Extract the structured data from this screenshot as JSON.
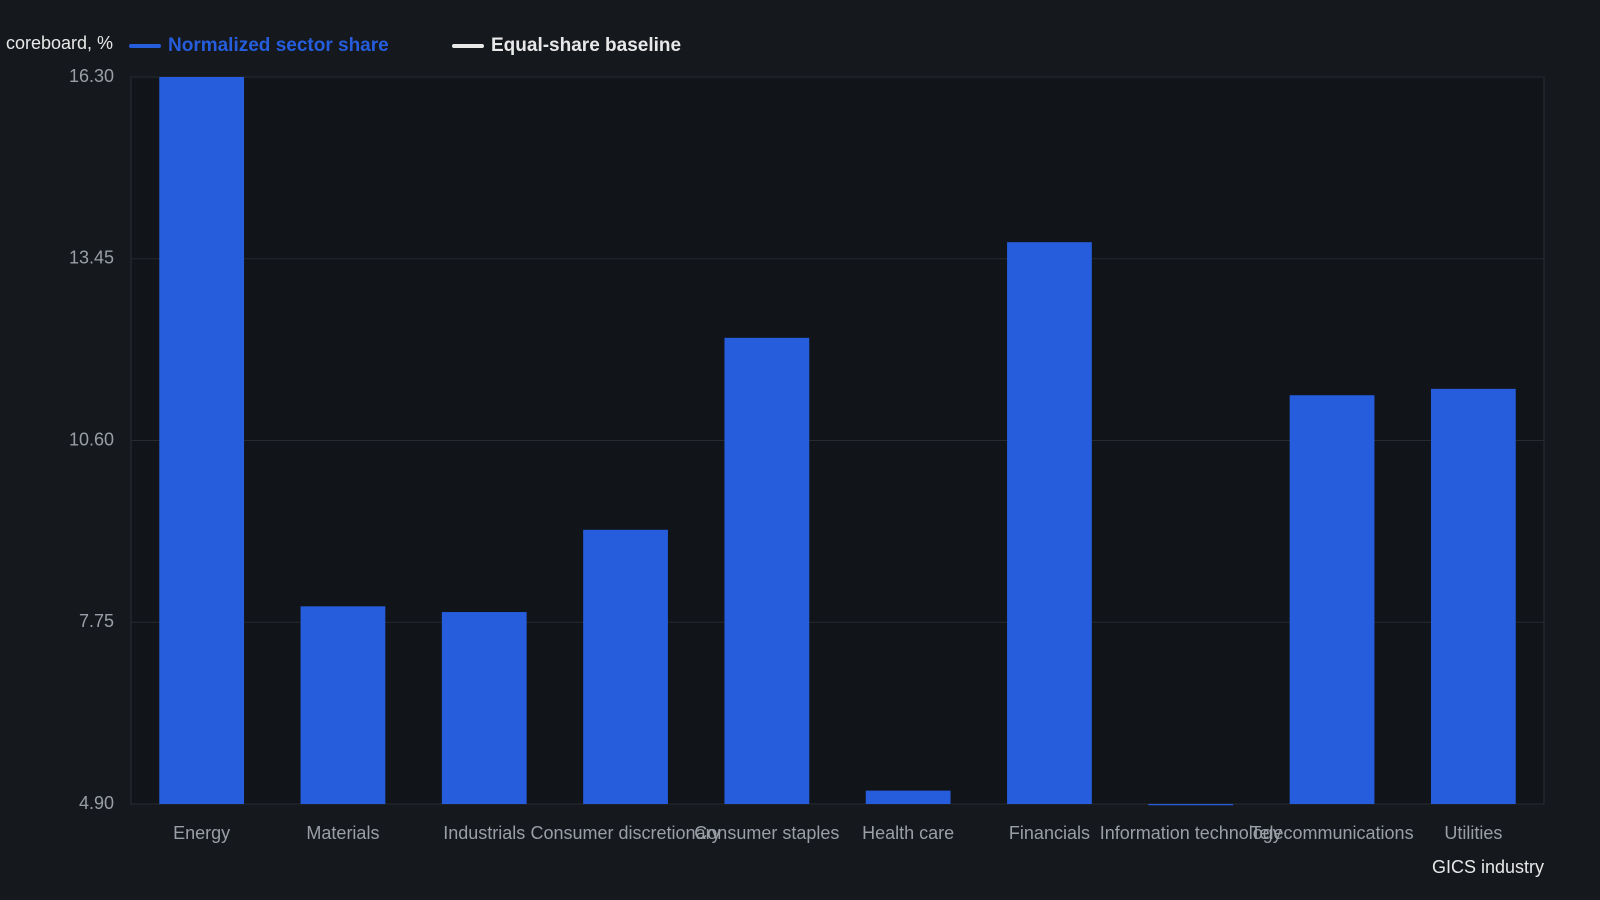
{
  "chart_data": {
    "type": "bar",
    "ylabel": "coreboard, %",
    "xlabel": "GICS industry",
    "categories": [
      "Energy",
      "Materials",
      "Industrials",
      "Consumer discretionary",
      "Consumer staples",
      "Health care",
      "Financials",
      "Information technology",
      "Telecommunications",
      "Utilities"
    ],
    "series": [
      {
        "name": "Normalized sector share",
        "color": "#255ddc",
        "values": [
          16.3,
          8.0,
          7.91,
          9.2,
          12.21,
          5.11,
          13.71,
          4.88,
          11.31,
          11.41
        ]
      }
    ],
    "legend_extra": [
      {
        "name": "Equal-share baseline",
        "color": "#e8e8e8"
      }
    ],
    "ylim": [
      4.9,
      16.3
    ],
    "yticks": [
      {
        "value": 4.9,
        "label": "4.90"
      },
      {
        "value": 7.75,
        "label": "7.75"
      },
      {
        "value": 10.6,
        "label": "10.60"
      },
      {
        "value": 13.45,
        "label": "13.45"
      },
      {
        "value": 16.3,
        "label": "16.30"
      }
    ],
    "grid": true
  }
}
